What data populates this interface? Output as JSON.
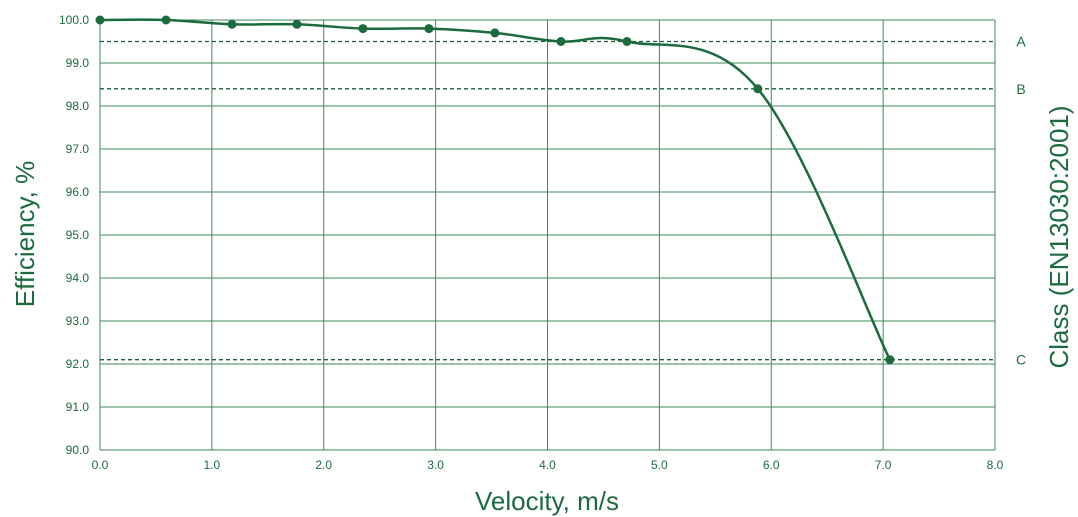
{
  "chart_data": {
    "type": "line",
    "xlabel": "Velocity, m/s",
    "ylabel": "Efficiency, %",
    "y2label": "Class (EN13030:2001)",
    "xlim": [
      0,
      8
    ],
    "ylim": [
      90,
      100
    ],
    "xticks": [
      "0.0",
      "1.0",
      "2.0",
      "3.0",
      "4.0",
      "5.0",
      "6.0",
      "7.0",
      "8.0"
    ],
    "yticks": [
      "90.0",
      "91.0",
      "92.0",
      "93.0",
      "94.0",
      "95.0",
      "96.0",
      "97.0",
      "98.0",
      "99.0",
      "100.0"
    ],
    "grid": true,
    "series": [
      {
        "x": [
          0.0,
          0.59,
          1.18,
          1.76,
          2.35,
          2.94,
          3.53,
          4.12,
          4.71,
          5.88,
          7.06
        ],
        "y": [
          100.0,
          100.0,
          99.9,
          99.9,
          99.8,
          99.8,
          99.7,
          99.5,
          99.5,
          98.4,
          92.1
        ]
      }
    ],
    "class_lines": [
      {
        "label": "A",
        "value": 99.5
      },
      {
        "label": "B",
        "value": 98.4
      },
      {
        "label": "C",
        "value": 92.1
      }
    ],
    "colors": {
      "line": "#1c6b3e",
      "grid": "#3f8a5e",
      "text": "#1c6b3e"
    }
  }
}
